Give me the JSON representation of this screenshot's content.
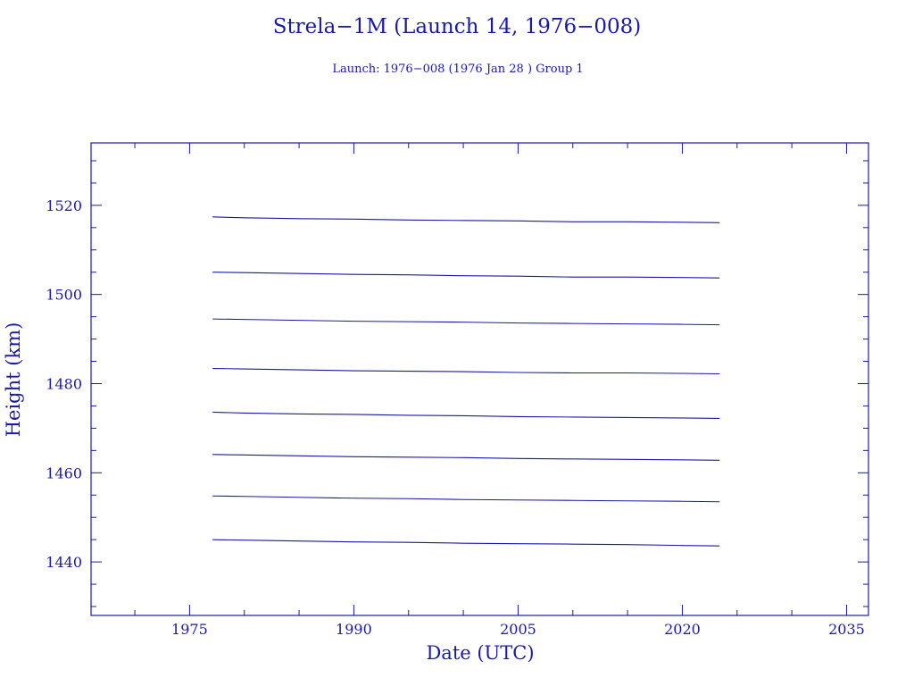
{
  "colors": {
    "ink": "#1a1aa8",
    "background": "#ffffff"
  },
  "chart_data": {
    "type": "line",
    "title": "Strela−1M (Launch 14, 1976−008)",
    "subtitle": "Launch: 1976−008  (1976 Jan 28 )  Group 1",
    "xlabel": "Date (UTC)",
    "ylabel": "Height (km)",
    "xlim": [
      1966,
      2037
    ],
    "ylim": [
      1428,
      1534
    ],
    "xticks": [
      1975,
      1990,
      2005,
      2020,
      2035
    ],
    "xtick_labels": [
      "1975",
      "1990",
      "2005",
      "2020",
      "2035"
    ],
    "yticks": [
      1440,
      1460,
      1480,
      1500,
      1520
    ],
    "ytick_labels": [
      "1440",
      "1460",
      "1480",
      "1500",
      "1520"
    ],
    "grid": false,
    "legend": "none",
    "series": [
      {
        "x": [
          1977.1,
          1980,
          1985,
          1990,
          1995,
          2000,
          2005,
          2010,
          2015,
          2020,
          2023.4
        ],
        "values": [
          1517.4,
          1517.2,
          1517.0,
          1516.9,
          1516.7,
          1516.6,
          1516.5,
          1516.3,
          1516.3,
          1516.2,
          1516.1
        ]
      },
      {
        "x": [
          1977.1,
          1980,
          1985,
          1990,
          1995,
          2000,
          2005,
          2010,
          2015,
          2020,
          2023.4
        ],
        "values": [
          1505.0,
          1504.9,
          1504.7,
          1504.5,
          1504.4,
          1504.2,
          1504.1,
          1503.9,
          1503.9,
          1503.8,
          1503.7
        ]
      },
      {
        "x": [
          1977.1,
          1980,
          1985,
          1990,
          1995,
          2000,
          2005,
          2010,
          2015,
          2020,
          2023.4
        ],
        "values": [
          1494.5,
          1494.4,
          1494.2,
          1494.0,
          1493.9,
          1493.8,
          1493.6,
          1493.5,
          1493.4,
          1493.3,
          1493.2
        ]
      },
      {
        "x": [
          1977.1,
          1980,
          1985,
          1990,
          1995,
          2000,
          2005,
          2010,
          2015,
          2020,
          2023.4
        ],
        "values": [
          1483.4,
          1483.3,
          1483.1,
          1482.9,
          1482.8,
          1482.7,
          1482.5,
          1482.4,
          1482.4,
          1482.3,
          1482.2
        ]
      },
      {
        "x": [
          1977.1,
          1980,
          1985,
          1990,
          1995,
          2000,
          2005,
          2010,
          2015,
          2020,
          2023.4
        ],
        "values": [
          1473.6,
          1473.4,
          1473.2,
          1473.1,
          1472.9,
          1472.8,
          1472.6,
          1472.5,
          1472.4,
          1472.3,
          1472.2
        ]
      },
      {
        "x": [
          1977.1,
          1980,
          1985,
          1990,
          1995,
          2000,
          2005,
          2010,
          2015,
          2020,
          2023.4
        ],
        "values": [
          1464.1,
          1464.0,
          1463.8,
          1463.6,
          1463.5,
          1463.4,
          1463.2,
          1463.1,
          1463.0,
          1462.9,
          1462.8
        ]
      },
      {
        "x": [
          1977.1,
          1980,
          1985,
          1990,
          1995,
          2000,
          2005,
          2010,
          2015,
          2020,
          2023.4
        ],
        "values": [
          1454.8,
          1454.7,
          1454.5,
          1454.3,
          1454.2,
          1454.0,
          1453.9,
          1453.8,
          1453.7,
          1453.6,
          1453.5
        ]
      },
      {
        "x": [
          1977.1,
          1980,
          1985,
          1990,
          1995,
          2000,
          2005,
          2010,
          2015,
          2020,
          2023.4
        ],
        "values": [
          1445.0,
          1444.9,
          1444.7,
          1444.5,
          1444.4,
          1444.2,
          1444.1,
          1444.0,
          1443.9,
          1443.7,
          1443.6
        ]
      }
    ]
  }
}
